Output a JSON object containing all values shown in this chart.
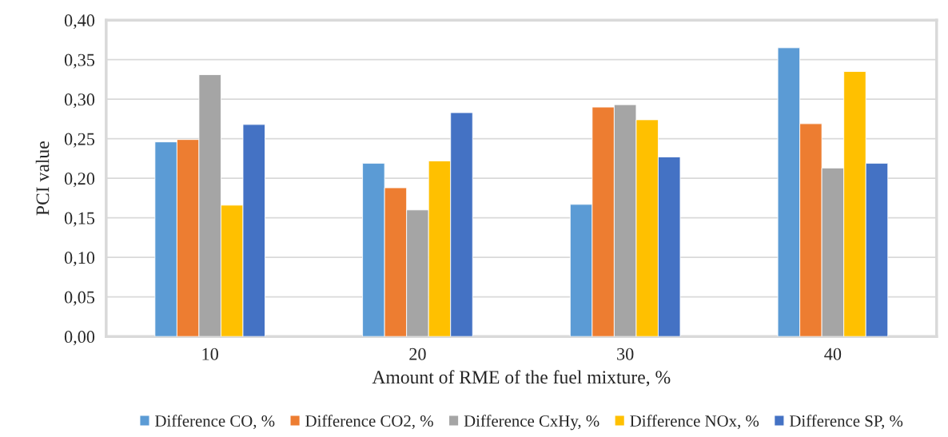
{
  "chart_data": {
    "type": "bar",
    "xlabel": "Amount of RME of the fuel mixture, %",
    "ylabel": "PCI value",
    "categories": [
      "10",
      "20",
      "30",
      "40"
    ],
    "series": [
      {
        "name": "Difference CO, %",
        "color": "#5b9bd5",
        "values": [
          0.246,
          0.219,
          0.167,
          0.365
        ]
      },
      {
        "name": "Difference CO2, %",
        "color": "#ed7d31",
        "values": [
          0.249,
          0.188,
          0.29,
          0.269
        ]
      },
      {
        "name": "Difference CxHy, %",
        "color": "#a5a5a5",
        "values": [
          0.331,
          0.16,
          0.293,
          0.213
        ]
      },
      {
        "name": "Difference NOx, %",
        "color": "#ffc000",
        "values": [
          0.166,
          0.222,
          0.274,
          0.335
        ]
      },
      {
        "name": "Difference SP, %",
        "color": "#4472c4",
        "values": [
          0.268,
          0.283,
          0.227,
          0.219
        ]
      }
    ],
    "ylim": [
      0,
      0.4
    ],
    "yticks": [
      {
        "value": 0,
        "label": "0,00"
      },
      {
        "value": 0.05,
        "label": "0,05"
      },
      {
        "value": 0.1,
        "label": "0,10"
      },
      {
        "value": 0.15,
        "label": "0,15"
      },
      {
        "value": 0.2,
        "label": "0,20"
      },
      {
        "value": 0.25,
        "label": "0,25"
      },
      {
        "value": 0.3,
        "label": "0,30"
      },
      {
        "value": 0.35,
        "label": "0,35"
      },
      {
        "value": 0.4,
        "label": "0,40"
      }
    ],
    "grid": "y",
    "legend": "bottom"
  }
}
